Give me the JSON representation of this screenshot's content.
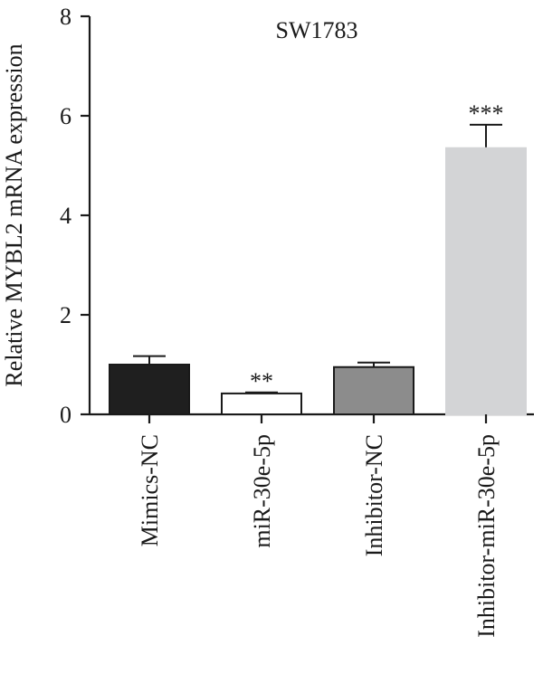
{
  "chart_data": {
    "type": "bar",
    "title": "SW1783",
    "ylabel": "Relative MYBL2 mRNA expression",
    "xlabel": "",
    "ylim": [
      0,
      8
    ],
    "yticks": [
      "0",
      "2",
      "4",
      "6",
      "8"
    ],
    "grid": false,
    "categories": [
      "Mimics-NC",
      "miR-30e-5p",
      "Inhibitor-NC",
      "Inhibitor-miR-30e-5p"
    ],
    "values": [
      1.0,
      0.42,
      0.95,
      5.35
    ],
    "errors": [
      0.17,
      0.02,
      0.09,
      0.47
    ],
    "significance": [
      "",
      "**",
      "",
      "***"
    ],
    "colors": [
      "#1f1f1f",
      "#ffffff",
      "#8c8c8c",
      "#d3d4d6"
    ]
  }
}
